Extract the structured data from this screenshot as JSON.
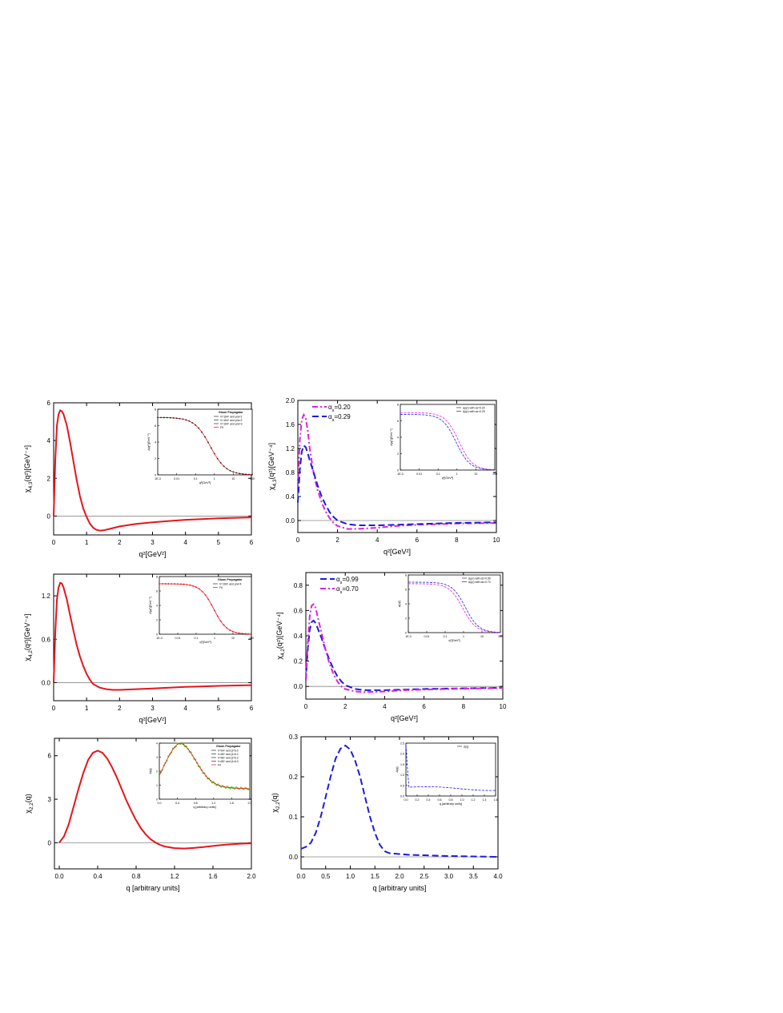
{
  "colors": {
    "red": "#e8141c",
    "blue": "#1c1ce0",
    "magenta": "#e020e0",
    "axis": "#000000",
    "zero_line": "#888888"
  },
  "chart_data": [
    {
      "id": "p1",
      "type": "line",
      "xlabel": "q²[GeV²]",
      "ylabel": "χ4,3(q²)[GeV⁻⁴]",
      "xlim": [
        0,
        6
      ],
      "ylim": [
        -1,
        6
      ],
      "xticks": [
        0,
        1,
        2,
        3,
        4,
        5,
        6
      ],
      "yticks": [
        0,
        2,
        4,
        6
      ],
      "xtick_labels": [
        "0",
        "1",
        "2",
        "3",
        "4",
        "5",
        "6"
      ],
      "ytick_labels": [
        "0",
        "2",
        "4",
        "6"
      ],
      "series": [
        {
          "color": "red",
          "style": "solid",
          "x": [
            0,
            0.05,
            0.1,
            0.15,
            0.2,
            0.25,
            0.3,
            0.4,
            0.5,
            0.6,
            0.7,
            0.8,
            0.9,
            1.0,
            1.1,
            1.2,
            1.3,
            1.4,
            1.5,
            1.7,
            2.0,
            2.5,
            3,
            3.5,
            4,
            5,
            6
          ],
          "y": [
            0,
            3.0,
            4.8,
            5.4,
            5.6,
            5.55,
            5.4,
            4.8,
            3.9,
            2.9,
            1.9,
            1.05,
            0.4,
            -0.05,
            -0.4,
            -0.62,
            -0.73,
            -0.77,
            -0.76,
            -0.68,
            -0.55,
            -0.42,
            -0.33,
            -0.26,
            -0.2,
            -0.12,
            -0.07
          ]
        }
      ],
      "inset": {
        "legend_title": "Gluon Propagator",
        "legend": [
          "V=164⁴ and p/a=1",
          "V=164⁴ and p/a=2",
          "V=164⁴ and p/a=3",
          "Fit"
        ],
        "xlabel": "q²[GeV²]",
        "ylabel": "Δ(q²)[GeV⁻²]",
        "xtick_labels": [
          "1E-3",
          "0.01",
          "0.1",
          "1",
          "10",
          "100"
        ],
        "ytick_labels": [
          "0",
          "2",
          "4",
          "6",
          "8"
        ],
        "x_log": true,
        "xlim": [
          0.001,
          100
        ],
        "ylim": [
          0,
          8
        ],
        "curve": "sigmoid",
        "ymax": 7.0,
        "xmid": 0.6,
        "width": 1.15,
        "points": "black"
      }
    },
    {
      "id": "p2",
      "type": "line",
      "xlabel": "q²[GeV²]",
      "ylabel": "χ4,3(q²)[GeV⁻⁴]",
      "xlim": [
        0,
        10
      ],
      "ylim": [
        -0.2,
        2.0
      ],
      "xticks": [
        0,
        2,
        4,
        6,
        8,
        10
      ],
      "yticks": [
        0.0,
        0.4,
        0.8,
        1.2,
        1.6,
        2.0
      ],
      "xtick_labels": [
        "0",
        "2",
        "4",
        "6",
        "8",
        "10"
      ],
      "ytick_labels": [
        "0.0",
        "0.4",
        "0.8",
        "1.2",
        "1.6",
        "2.0"
      ],
      "legend": [
        "αs=0.20",
        "αs=0.29"
      ],
      "series": [
        {
          "name": "αs=0.20",
          "color": "magenta",
          "style": "dashdot",
          "x": [
            0,
            0.1,
            0.2,
            0.3,
            0.4,
            0.5,
            0.6,
            0.8,
            1.0,
            1.2,
            1.4,
            1.6,
            1.8,
            2.0,
            2.5,
            3,
            4,
            5,
            6,
            8,
            10
          ],
          "y": [
            0.5,
            1.35,
            1.68,
            1.76,
            1.7,
            1.5,
            1.2,
            0.78,
            0.5,
            0.3,
            0.15,
            0.04,
            -0.04,
            -0.09,
            -0.14,
            -0.14,
            -0.12,
            -0.09,
            -0.07,
            -0.05,
            -0.04
          ]
        },
        {
          "name": "αs=0.29",
          "color": "blue",
          "style": "dash",
          "x": [
            0,
            0.1,
            0.2,
            0.3,
            0.4,
            0.5,
            0.6,
            0.8,
            1.0,
            1.2,
            1.4,
            1.6,
            1.8,
            2.0,
            2.5,
            3,
            4,
            5,
            6,
            8,
            10
          ],
          "y": [
            0.3,
            0.85,
            1.15,
            1.25,
            1.22,
            1.12,
            1.0,
            0.8,
            0.58,
            0.4,
            0.26,
            0.14,
            0.06,
            0.0,
            -0.06,
            -0.08,
            -0.08,
            -0.07,
            -0.06,
            -0.04,
            -0.03
          ]
        }
      ],
      "inset": {
        "legend": [
          "Δ(q²) with αs=0.20",
          "Δ(q²) with αs=0.29"
        ],
        "xlabel": "q²[GeV²]",
        "ylabel": "Δ(q²)[GeV⁻²]",
        "xtick_labels": [
          "1E-3",
          "0.01",
          "0.1",
          "1",
          "10",
          "100"
        ],
        "ytick_labels": [
          "0",
          "2",
          "4",
          "6",
          "8"
        ],
        "x_log": true,
        "xlim": [
          0.001,
          100
        ],
        "ylim": [
          0,
          8
        ],
        "curve": "double",
        "ymax": 7.0,
        "xmid": 0.9,
        "width": 1.0,
        "colors": [
          "magenta",
          "blue"
        ]
      }
    },
    {
      "id": "p3",
      "type": "line",
      "xlabel": "q²[GeV²]",
      "ylabel": "χ4,2(q²)[GeV⁻⁴]",
      "xlim": [
        0,
        6
      ],
      "ylim": [
        -0.25,
        1.5
      ],
      "xticks": [
        0,
        1,
        2,
        3,
        4,
        5,
        6
      ],
      "yticks": [
        0.0,
        0.6,
        1.2
      ],
      "xtick_labels": [
        "0",
        "1",
        "2",
        "3",
        "4",
        "5",
        "6"
      ],
      "ytick_labels": [
        "0.0",
        "0.6",
        "1.2"
      ],
      "series": [
        {
          "color": "red",
          "style": "solid",
          "x": [
            0,
            0.05,
            0.1,
            0.15,
            0.2,
            0.25,
            0.3,
            0.4,
            0.5,
            0.6,
            0.7,
            0.8,
            0.9,
            1.0,
            1.1,
            1.2,
            1.4,
            1.6,
            1.8,
            2.0,
            2.5,
            3,
            4,
            5,
            6
          ],
          "y": [
            0,
            0.7,
            1.15,
            1.32,
            1.38,
            1.37,
            1.32,
            1.15,
            0.93,
            0.72,
            0.52,
            0.36,
            0.23,
            0.12,
            0.04,
            -0.02,
            -0.07,
            -0.09,
            -0.1,
            -0.1,
            -0.09,
            -0.08,
            -0.06,
            -0.045,
            -0.035
          ]
        }
      ],
      "inset": {
        "legend_title": "Gluon Propagator",
        "legend": [
          "V=164⁴ and p/a=4",
          "Fit"
        ],
        "xlabel": "q²[GeV²]",
        "ylabel": "Δ(q²)[GeV⁻²]",
        "xtick_labels": [
          "1E-3",
          "0.01",
          "0.1",
          "1",
          "10",
          "100"
        ],
        "ytick_labels": [
          "0",
          "2",
          "4",
          "6",
          "8"
        ],
        "x_log": true,
        "xlim": [
          0.001,
          100
        ],
        "ylim": [
          0,
          8
        ],
        "curve": "sigmoid",
        "ymax": 7.0,
        "xmid": 0.9,
        "width": 1.0,
        "points": "red"
      }
    },
    {
      "id": "p4",
      "type": "line",
      "xlabel": "q²[GeV²]",
      "ylabel": "χ4,2(q²)[GeV⁻⁴]",
      "xlim": [
        0,
        10
      ],
      "ylim": [
        -0.1,
        0.9
      ],
      "xticks": [
        0,
        2,
        4,
        6,
        8,
        10
      ],
      "yticks": [
        0.0,
        0.2,
        0.4,
        0.6,
        0.8
      ],
      "xtick_labels": [
        "0",
        "2",
        "4",
        "6",
        "8",
        "10"
      ],
      "ytick_labels": [
        "0.0",
        "0.2",
        "0.4",
        "0.6",
        "0.8"
      ],
      "legend": [
        "αs=0.99",
        "αs=0.70"
      ],
      "series": [
        {
          "name": "αs=0.99",
          "color": "blue",
          "style": "dash",
          "x": [
            0,
            0.1,
            0.2,
            0.3,
            0.4,
            0.5,
            0.6,
            0.8,
            1.0,
            1.2,
            1.4,
            1.6,
            1.8,
            2.0,
            2.5,
            3,
            4,
            5,
            6,
            8,
            10
          ],
          "y": [
            0.05,
            0.3,
            0.45,
            0.51,
            0.52,
            0.5,
            0.46,
            0.38,
            0.29,
            0.21,
            0.14,
            0.08,
            0.04,
            0.01,
            -0.02,
            -0.03,
            -0.03,
            -0.025,
            -0.02,
            -0.015,
            -0.01
          ]
        },
        {
          "name": "αs=0.70",
          "color": "magenta",
          "style": "dashdot",
          "x": [
            0,
            0.1,
            0.2,
            0.3,
            0.4,
            0.5,
            0.6,
            0.8,
            1.0,
            1.2,
            1.4,
            1.6,
            1.8,
            2.0,
            2.5,
            3,
            4,
            5,
            6,
            8,
            10
          ],
          "y": [
            0.05,
            0.35,
            0.56,
            0.64,
            0.65,
            0.62,
            0.55,
            0.42,
            0.29,
            0.18,
            0.1,
            0.04,
            0.0,
            -0.02,
            -0.04,
            -0.045,
            -0.04,
            -0.03,
            -0.025,
            -0.018,
            -0.012
          ]
        }
      ],
      "inset": {
        "legend": [
          "Δ(q²) with αs=0.99",
          "Δ(q²) with αs=0.70"
        ],
        "xlabel": "q²[GeV²]",
        "ylabel": "Δ(q²)",
        "xtick_labels": [
          "1E-3",
          "0.01",
          "0.1",
          "1",
          "10",
          "100"
        ],
        "ytick_labels": [
          "0",
          "2",
          "4",
          "6",
          "8"
        ],
        "x_log": true,
        "xlim": [
          0.001,
          100
        ],
        "ylim": [
          0,
          8
        ],
        "curve": "double",
        "ymax": 7.0,
        "xmid": 0.9,
        "width": 1.0,
        "colors": [
          "blue",
          "magenta"
        ]
      }
    },
    {
      "id": "p5",
      "type": "line",
      "xlabel": "q [arbitrary units]",
      "ylabel": "χ2,2(q)",
      "xlim": [
        -0.05,
        2.0
      ],
      "ylim": [
        -1.8,
        7.2
      ],
      "xticks": [
        0.0,
        0.4,
        0.8,
        1.2,
        1.6,
        2.0
      ],
      "yticks": [
        0,
        3,
        6
      ],
      "xtick_labels": [
        "0.0",
        "0.4",
        "0.8",
        "1.2",
        "1.6",
        "2.0"
      ],
      "ytick_labels": [
        "0",
        "3",
        "6"
      ],
      "series": [
        {
          "color": "red",
          "style": "solid",
          "x": [
            0,
            0.05,
            0.1,
            0.15,
            0.2,
            0.25,
            0.3,
            0.35,
            0.4,
            0.45,
            0.5,
            0.55,
            0.6,
            0.65,
            0.7,
            0.75,
            0.8,
            0.85,
            0.9,
            0.95,
            1.0,
            1.05,
            1.1,
            1.2,
            1.3,
            1.4,
            1.5,
            1.6,
            1.7,
            1.8,
            1.9,
            2.0
          ],
          "y": [
            0,
            0.45,
            1.3,
            2.5,
            3.7,
            4.8,
            5.7,
            6.2,
            6.35,
            6.2,
            5.8,
            5.2,
            4.5,
            3.7,
            2.9,
            2.2,
            1.55,
            1.0,
            0.58,
            0.25,
            0.02,
            -0.15,
            -0.26,
            -0.37,
            -0.4,
            -0.36,
            -0.3,
            -0.22,
            -0.15,
            -0.1,
            -0.06,
            -0.04
          ]
        }
      ],
      "inset": {
        "legend_title": "Gluon Propagator",
        "legend": [
          "V=64⁴ and β=6.0",
          "V=80⁴ and β=6.2",
          "V=80⁴ and β=6.3",
          "V=80⁴ and β=6.3",
          "Fit"
        ],
        "xlabel": "q [arbitrary units]",
        "ylabel": "Δ(q)",
        "xtick_labels": [
          "0.0",
          "0.4",
          "0.8",
          "1.2",
          "1.6",
          "2.0"
        ],
        "ytick_labels": [
          "0",
          "1",
          "2",
          "3",
          "4"
        ],
        "x_log": false,
        "xlim": [
          0,
          2.0
        ],
        "ylim": [
          0,
          4.5
        ],
        "curve": "hump",
        "points": "green"
      }
    },
    {
      "id": "p6",
      "type": "line",
      "xlabel": "q [arbitrary units]",
      "ylabel": "χ2,2(q)",
      "xlim": [
        0,
        4.0
      ],
      "ylim": [
        -0.03,
        0.3
      ],
      "xticks": [
        0.0,
        0.5,
        1.0,
        1.5,
        2.0,
        2.5,
        3.0,
        3.5,
        4.0
      ],
      "yticks": [
        0.0,
        0.1,
        0.2,
        0.3
      ],
      "xtick_labels": [
        "0.0",
        "0.5",
        "1.0",
        "1.5",
        "2.0",
        "2.5",
        "3.0",
        "3.5",
        "4.0"
      ],
      "ytick_labels": [
        "0.0",
        "0.1",
        "0.2",
        "0.3"
      ],
      "series": [
        {
          "color": "blue",
          "style": "dash",
          "x": [
            0,
            0.1,
            0.2,
            0.3,
            0.4,
            0.5,
            0.6,
            0.7,
            0.8,
            0.9,
            1.0,
            1.1,
            1.2,
            1.3,
            1.4,
            1.5,
            1.6,
            1.7,
            1.8,
            2.0,
            2.2,
            2.5,
            3,
            3.5,
            4.0
          ],
          "y": [
            0.02,
            0.025,
            0.035,
            0.06,
            0.1,
            0.15,
            0.2,
            0.245,
            0.27,
            0.278,
            0.268,
            0.24,
            0.2,
            0.15,
            0.1,
            0.06,
            0.03,
            0.014,
            0.009,
            0.007,
            0.005,
            0.004,
            0.002,
            0.001,
            0.0
          ]
        }
      ],
      "inset": {
        "legend": [
          "Δ(q)"
        ],
        "xlabel": "q [arbitrary units]",
        "ylabel": "Δ(q)",
        "xtick_labels": [
          "0.0",
          "0.2",
          "0.4",
          "0.6",
          "0.8",
          "1.0",
          "1.2",
          "1.4",
          "1.6"
        ],
        "ytick_labels": [
          "0.0",
          "0.5",
          "1.0",
          "1.5",
          "2.0",
          "2.5"
        ],
        "x_log": false,
        "xlim": [
          0,
          1.6
        ],
        "ylim": [
          0,
          2.5
        ],
        "curve": "spike",
        "colors": [
          "blue"
        ]
      }
    }
  ]
}
